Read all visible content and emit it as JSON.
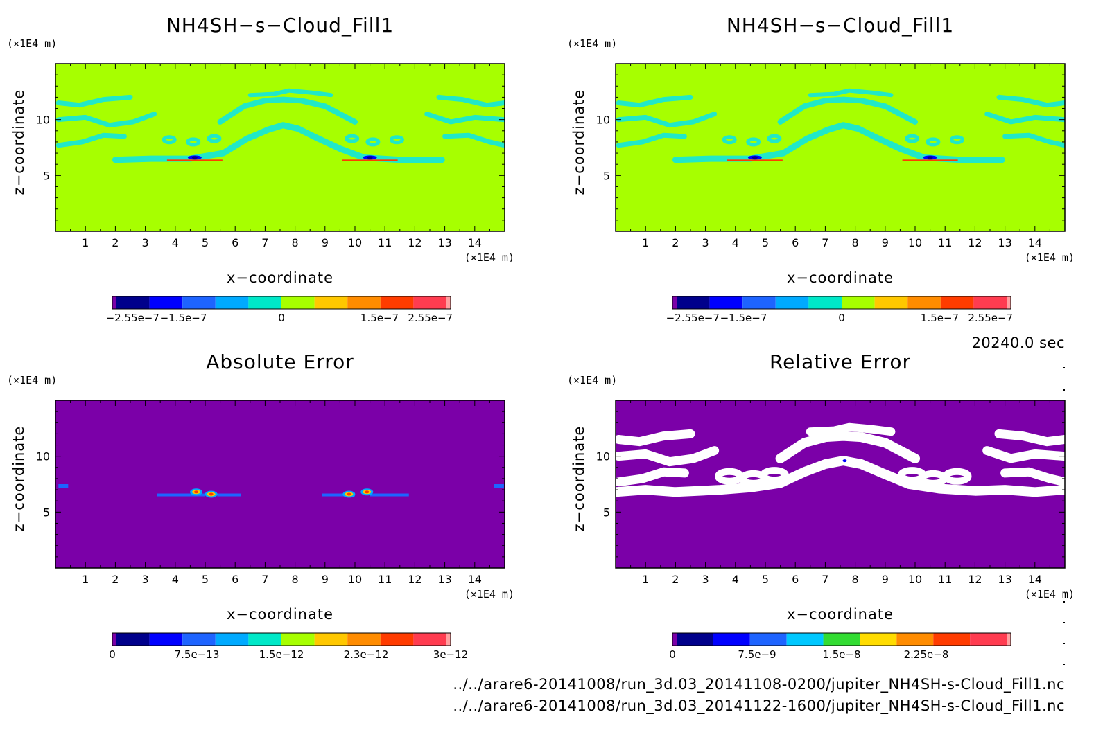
{
  "figure": {
    "time_label": "20240.0 sec",
    "files": [
      "../../arare6-20141008/run_3d.03_20141108-0200/jupiter_NH4SH-s-Cloud_Fill1.nc",
      "../../arare6-20141008/run_3d.03_20141122-1600/jupiter_NH4SH-s-Cloud_Fill1.nc"
    ],
    "colors": {
      "background": "#a7ff00",
      "cyan_band": "#20e8c8",
      "error_background": "#7b00a8"
    }
  },
  "chart_data": [
    {
      "type": "heatmap",
      "title": "NH4SH−s−Cloud_Fill1",
      "xlabel": "x−coordinate",
      "ylabel": "z−coordinate",
      "x_unit": "(×1E4 m)",
      "y_unit": "(×1E4 m)",
      "xlim": [
        0,
        15
      ],
      "ylim": [
        0,
        15
      ],
      "x_ticks": [
        "1",
        "2",
        "3",
        "4",
        "5",
        "6",
        "7",
        "8",
        "9",
        "10",
        "11",
        "12",
        "13",
        "14"
      ],
      "y_ticks": [
        "5",
        "10"
      ],
      "colorbar": {
        "labels": [
          "−2.55e−7",
          "−1.5e−7",
          "0",
          "1.5e−7",
          "2.55e−7"
        ],
        "colors": [
          "#7b00a8",
          "#00008b",
          "#0000ff",
          "#1e64ff",
          "#00aaff",
          "#00e8c8",
          "#a7ff00",
          "#ffc800",
          "#ff8c00",
          "#ff3c00",
          "#ff3c50",
          "#ffa0a0"
        ]
      }
    },
    {
      "type": "heatmap",
      "title": "NH4SH−s−Cloud_Fill1",
      "xlabel": "x−coordinate",
      "ylabel": "z−coordinate",
      "x_unit": "(×1E4 m)",
      "y_unit": "(×1E4 m)",
      "xlim": [
        0,
        15
      ],
      "ylim": [
        0,
        15
      ],
      "x_ticks": [
        "1",
        "2",
        "3",
        "4",
        "5",
        "6",
        "7",
        "8",
        "9",
        "10",
        "11",
        "12",
        "13",
        "14"
      ],
      "y_ticks": [
        "5",
        "10"
      ],
      "colorbar": {
        "labels": [
          "−2.55e−7",
          "−1.5e−7",
          "0",
          "1.5e−7",
          "2.55e−7"
        ],
        "colors": [
          "#7b00a8",
          "#00008b",
          "#0000ff",
          "#1e64ff",
          "#00aaff",
          "#00e8c8",
          "#a7ff00",
          "#ffc800",
          "#ff8c00",
          "#ff3c00",
          "#ff3c50",
          "#ffa0a0"
        ]
      }
    },
    {
      "type": "heatmap",
      "title": "Absolute Error",
      "xlabel": "x−coordinate",
      "ylabel": "z−coordinate",
      "x_unit": "(×1E4 m)",
      "y_unit": "(×1E4 m)",
      "xlim": [
        0,
        15
      ],
      "ylim": [
        0,
        15
      ],
      "x_ticks": [
        "1",
        "2",
        "3",
        "4",
        "5",
        "6",
        "7",
        "8",
        "9",
        "10",
        "11",
        "12",
        "13",
        "14"
      ],
      "y_ticks": [
        "5",
        "10"
      ],
      "colorbar": {
        "labels": [
          "0",
          "7.5e−13",
          "1.5e−12",
          "2.3e−12",
          "3e−12"
        ],
        "colors": [
          "#7b00a8",
          "#00008b",
          "#0000ff",
          "#1e64ff",
          "#00aaff",
          "#00e8c8",
          "#a7ff00",
          "#ffc800",
          "#ff8c00",
          "#ff3c00",
          "#ff3c50",
          "#ffa0a0"
        ]
      }
    },
    {
      "type": "heatmap",
      "title": "Relative Error",
      "xlabel": "x−coordinate",
      "ylabel": "z−coordinate",
      "x_unit": "(×1E4 m)",
      "y_unit": "(×1E4 m)",
      "xlim": [
        0,
        15
      ],
      "ylim": [
        0,
        15
      ],
      "x_ticks": [
        "1",
        "2",
        "3",
        "4",
        "5",
        "6",
        "7",
        "8",
        "9",
        "10",
        "11",
        "12",
        "13",
        "14"
      ],
      "y_ticks": [
        "5",
        "10"
      ],
      "colorbar": {
        "labels": [
          "0",
          "7.5e−9",
          "1.5e−8",
          "2.25e−8"
        ],
        "colors": [
          "#7b00a8",
          "#00008b",
          "#0000ff",
          "#1e64ff",
          "#00c8ff",
          "#32dc32",
          "#ffdc00",
          "#ff8c00",
          "#ff3c00",
          "#ff3c50",
          "#ffa0a0"
        ]
      }
    }
  ]
}
